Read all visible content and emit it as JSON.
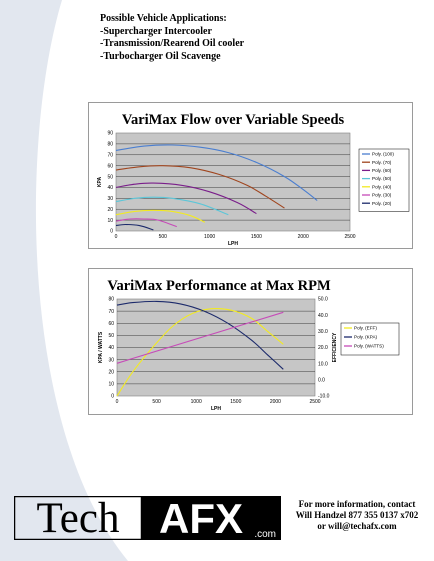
{
  "applications": {
    "heading": "Possible Vehicle Applications:",
    "items": [
      "-Supercharger Intercooler",
      "-Transmission/Rearend Oil cooler",
      "-Turbocharger Oil Scavenge"
    ]
  },
  "chart_data": [
    {
      "type": "line",
      "title": "VariMax Flow over Variable Speeds",
      "xlabel": "LPH",
      "ylabel": "KPA",
      "xlim": [
        0,
        2500
      ],
      "ylim": [
        0,
        90
      ],
      "xticks": [
        "0",
        "500",
        "1000",
        "1500",
        "2000",
        "2500"
      ],
      "yticks": [
        "0",
        "10",
        "20",
        "30",
        "40",
        "50",
        "60",
        "70",
        "80",
        "90"
      ],
      "grid": true,
      "legend_position": "right",
      "series": [
        {
          "name": "Poly. (100)",
          "color": "#4a7ed0",
          "x": [
            0,
            300,
            600,
            900,
            1200,
            1500,
            1800,
            2000,
            2150
          ],
          "y": [
            74,
            78,
            79,
            77,
            72,
            63,
            50,
            38,
            28
          ]
        },
        {
          "name": "Poly. (70)",
          "color": "#a0451e",
          "x": [
            0,
            250,
            500,
            800,
            1100,
            1400,
            1600,
            1800
          ],
          "y": [
            56,
            59,
            60,
            58,
            52,
            42,
            32,
            21
          ]
        },
        {
          "name": "Poly. (60)",
          "color": "#7a1e8a",
          "x": [
            0,
            200,
            400,
            700,
            1000,
            1300,
            1500
          ],
          "y": [
            40,
            43,
            44,
            42,
            36,
            26,
            16
          ]
        },
        {
          "name": "Poly. (50)",
          "color": "#5cc6d8",
          "x": [
            0,
            200,
            400,
            600,
            900,
            1200
          ],
          "y": [
            27,
            30,
            31,
            30,
            25,
            15
          ]
        },
        {
          "name": "Poly. (40)",
          "color": "#f2ea22",
          "x": [
            0,
            200,
            400,
            600,
            800,
            950
          ],
          "y": [
            15,
            18,
            19,
            18,
            14,
            8
          ]
        },
        {
          "name": "Poly. (30)",
          "color": "#c64bb8",
          "x": [
            0,
            150,
            300,
            450,
            650
          ],
          "y": [
            9,
            11,
            11,
            10,
            4
          ]
        },
        {
          "name": "Poly. (20)",
          "color": "#1c2a6b",
          "x": [
            0,
            100,
            250,
            400
          ],
          "y": [
            5,
            6,
            5,
            1
          ]
        }
      ]
    },
    {
      "type": "line",
      "title": "VariMax Performance at Max RPM",
      "xlabel": "LPH",
      "ylabel": "KPA / WATTS",
      "y2label": "EFFICIENCY",
      "xlim": [
        0,
        2500
      ],
      "ylim": [
        0,
        80
      ],
      "y2lim": [
        -10,
        50
      ],
      "xticks": [
        "0",
        "500",
        "1000",
        "1500",
        "2000",
        "2500"
      ],
      "yticks": [
        "0",
        "10",
        "20",
        "30",
        "40",
        "50",
        "60",
        "70",
        "80"
      ],
      "y2ticks": [
        "-10.0",
        "0.0",
        "10.0",
        "20.0",
        "30.0",
        "40.0",
        "50.0"
      ],
      "grid": true,
      "legend_position": "right",
      "series": [
        {
          "name": "Poly. (EFF)",
          "color": "#f2ea22",
          "axis": "y2",
          "x": [
            0,
            200,
            450,
            700,
            950,
            1200,
            1450,
            1700,
            1900,
            2100
          ],
          "y": [
            -10,
            5,
            20,
            33,
            41,
            44,
            43,
            38,
            30,
            22
          ]
        },
        {
          "name": "Poly. (KPA)",
          "color": "#1c2a6b",
          "axis": "y",
          "x": [
            0,
            200,
            500,
            800,
            1100,
            1400,
            1700,
            1900,
            2100
          ],
          "y": [
            75,
            77,
            78,
            76,
            70,
            60,
            46,
            34,
            22
          ]
        },
        {
          "name": "Poly. (WATTS)",
          "color": "#c64bb8",
          "axis": "y",
          "x": [
            0,
            2100
          ],
          "y": [
            27,
            69
          ]
        }
      ]
    }
  ],
  "logo": {
    "text_left": "Tech",
    "text_right": "AFX",
    "suffix": ".com"
  },
  "contact": {
    "line1": "For more information, contact",
    "line2": "Will Handzel  877 355 0137 x702",
    "line3": "or will@techafx.com"
  },
  "colors": {
    "page_bg": "#ffffff",
    "arc": "#e2e7ef",
    "plot_bg": "#c6c6c6",
    "logo_black": "#000000"
  }
}
